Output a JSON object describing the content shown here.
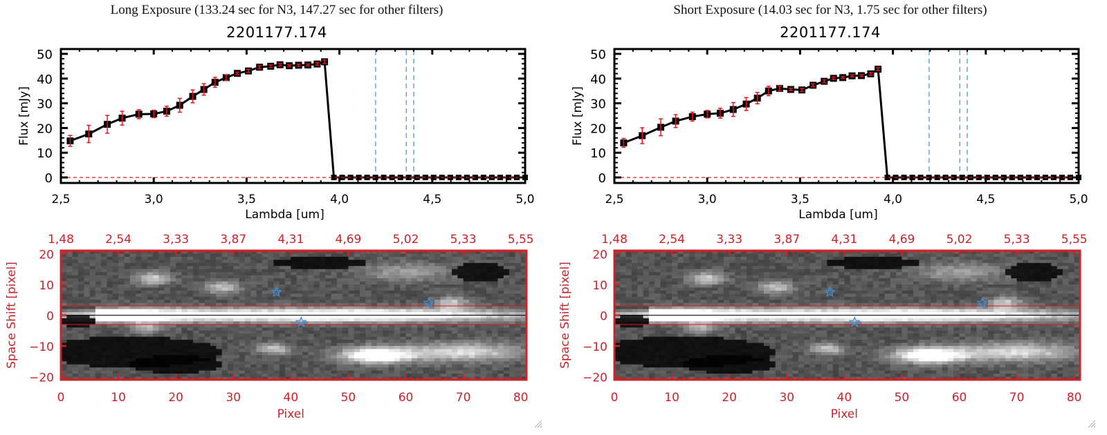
{
  "window": {
    "panels": [
      {
        "id": "long",
        "title": "Long Exposure (133.24 sec for N3, 147.27 sec for other filters)",
        "object_id": "2201177.174"
      },
      {
        "id": "short",
        "title": "Short Exposure (14.03 sec for N3, 1.75 sec for other filters)",
        "object_id": "2201177.174"
      }
    ]
  },
  "colors": {
    "line": "#000000",
    "errorbar": "#e8141c",
    "marker_fill": "#8b1010",
    "filter_lines": "#3b8fe0",
    "zero_line": "#e8141c",
    "image_axes": "#cc2229",
    "aperture_lines": "#ee1111",
    "stars": "#3b8fe0"
  },
  "chart_data": [
    {
      "type": "line",
      "panel": "long",
      "title": "2201177.174",
      "xlabel": "Lambda [um]",
      "ylabel": "Flux [mJy]",
      "xlim": [
        2.5,
        5.0
      ],
      "ylim": [
        0,
        50
      ],
      "xticks": [
        "2.5",
        "3.0",
        "3.5",
        "4.0",
        "4.5",
        "5.0"
      ],
      "yticks": [
        "0",
        "10",
        "20",
        "30",
        "40",
        "50"
      ],
      "grid": false,
      "series": [
        {
          "name": "flux",
          "x": [
            2.55,
            2.65,
            2.75,
            2.83,
            2.92,
            3.0,
            3.07,
            3.14,
            3.21,
            3.27,
            3.33,
            3.39,
            3.45,
            3.51,
            3.57,
            3.63,
            3.68,
            3.73,
            3.78,
            3.83,
            3.88,
            3.92
          ],
          "y": [
            14.8,
            17.6,
            21.5,
            24.0,
            25.6,
            25.7,
            26.8,
            29.2,
            32.8,
            35.6,
            38.5,
            40.4,
            42.1,
            43.1,
            44.6,
            45.0,
            45.6,
            45.2,
            45.4,
            45.5,
            45.9,
            46.8
          ],
          "yerr": [
            2.2,
            3.5,
            3.6,
            2.8,
            1.8,
            1.5,
            2.0,
            2.8,
            2.6,
            2.3,
            2.0,
            1.1,
            0.5,
            0.6,
            0.6,
            0.5,
            0.5,
            0.4,
            0.4,
            0.4,
            0.5,
            0.7
          ]
        },
        {
          "name": "zero-flux",
          "x_start": 3.97,
          "x_end": 5.0,
          "count": 24,
          "y": 0
        }
      ],
      "vlines": [
        4.195,
        4.36,
        4.4
      ],
      "hline_dashed": 0
    },
    {
      "type": "line",
      "panel": "short",
      "title": "2201177.174",
      "xlabel": "Lambda [um]",
      "ylabel": "Flux [mJy]",
      "xlim": [
        2.5,
        5.0
      ],
      "ylim": [
        0,
        50
      ],
      "xticks": [
        "2.5",
        "3.0",
        "3.5",
        "4.0",
        "4.5",
        "5.0"
      ],
      "yticks": [
        "0",
        "10",
        "20",
        "30",
        "40",
        "50"
      ],
      "grid": false,
      "series": [
        {
          "name": "flux",
          "x": [
            2.55,
            2.65,
            2.75,
            2.83,
            2.92,
            3.0,
            3.07,
            3.14,
            3.21,
            3.27,
            3.33,
            3.39,
            3.45,
            3.51,
            3.57,
            3.63,
            3.68,
            3.73,
            3.78,
            3.83,
            3.88,
            3.92
          ],
          "y": [
            14.0,
            16.9,
            20.3,
            22.8,
            24.6,
            25.6,
            26.0,
            27.5,
            29.7,
            32.1,
            35.0,
            36.0,
            35.6,
            35.4,
            37.3,
            38.9,
            40.1,
            40.4,
            41.1,
            41.2,
            41.9,
            43.8
          ],
          "yerr": [
            1.8,
            3.2,
            3.4,
            2.6,
            1.8,
            1.5,
            2.0,
            2.8,
            2.6,
            2.3,
            1.9,
            1.0,
            0.5,
            0.6,
            0.6,
            0.6,
            0.5,
            0.4,
            0.4,
            0.4,
            0.5,
            0.6
          ]
        },
        {
          "name": "zero-flux",
          "x_start": 3.97,
          "x_end": 5.0,
          "count": 24,
          "y": 0
        }
      ],
      "vlines": [
        4.195,
        4.36,
        4.4
      ],
      "hline_dashed": 0
    },
    {
      "type": "heatmap",
      "panel": "long",
      "xlabel": "Pixel",
      "ylabel": "Space Shift [pixel]",
      "xlim": [
        0,
        81
      ],
      "ylim": [
        -21,
        21
      ],
      "xticks": [
        "0",
        "10",
        "20",
        "30",
        "40",
        "50",
        "60",
        "70",
        "80"
      ],
      "yticks": [
        "-20",
        "-10",
        "0",
        "10",
        "20"
      ],
      "top_xticks": [
        "1.48",
        "2.54",
        "3.33",
        "3.87",
        "4.31",
        "4.69",
        "5.02",
        "5.33",
        "5.55"
      ],
      "aperture": [
        -3,
        3
      ],
      "center_line": 0,
      "stars": [
        [
          37.5,
          7.5
        ],
        [
          41.8,
          -2.3
        ],
        [
          64,
          4.0
        ]
      ]
    },
    {
      "type": "heatmap",
      "panel": "short",
      "xlabel": "Pixel",
      "ylabel": "Space Shift [pixel]",
      "xlim": [
        0,
        81
      ],
      "ylim": [
        -21,
        21
      ],
      "xticks": [
        "0",
        "10",
        "20",
        "30",
        "40",
        "50",
        "60",
        "70",
        "80"
      ],
      "yticks": [
        "-20",
        "-10",
        "0",
        "10",
        "20"
      ],
      "top_xticks": [
        "1.48",
        "2.54",
        "3.33",
        "3.87",
        "4.31",
        "4.69",
        "5.02",
        "5.33",
        "5.55"
      ],
      "aperture": [
        -3,
        3
      ],
      "center_line": 0,
      "stars": [
        [
          37.5,
          7.5
        ],
        [
          41.8,
          -2.3
        ],
        [
          64,
          4.0
        ]
      ]
    }
  ]
}
